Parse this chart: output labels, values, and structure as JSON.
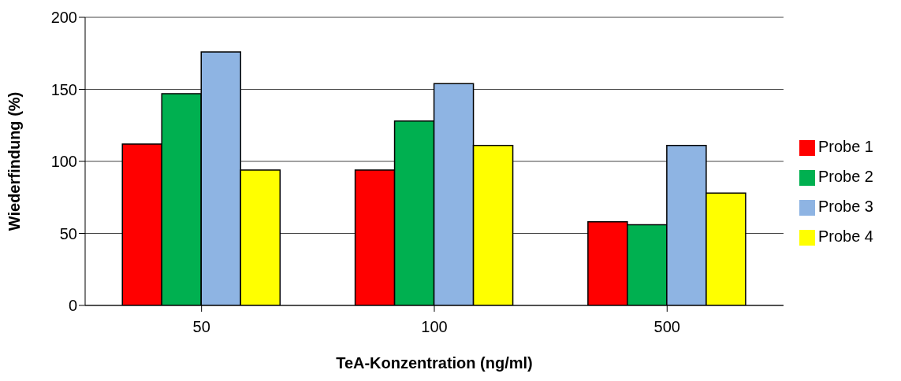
{
  "chart_data": {
    "type": "bar",
    "xlabel": "TeA-Konzentration (ng/ml)",
    "ylabel": "Wiederfindung (%)",
    "categories": [
      "50",
      "100",
      "500"
    ],
    "series": [
      {
        "name": "Probe 1",
        "color": "#ff0000",
        "values": [
          112,
          94,
          58
        ]
      },
      {
        "name": "Probe 2",
        "color": "#00b050",
        "values": [
          147,
          128,
          56
        ]
      },
      {
        "name": "Probe 3",
        "color": "#8eb4e3",
        "values": [
          176,
          154,
          111
        ]
      },
      {
        "name": "Probe 4",
        "color": "#ffff00",
        "values": [
          94,
          111,
          78
        ]
      }
    ],
    "ylim": [
      0,
      200
    ],
    "yticks": [
      0,
      50,
      100,
      150,
      200
    ],
    "grid": "y",
    "legend": "right"
  }
}
